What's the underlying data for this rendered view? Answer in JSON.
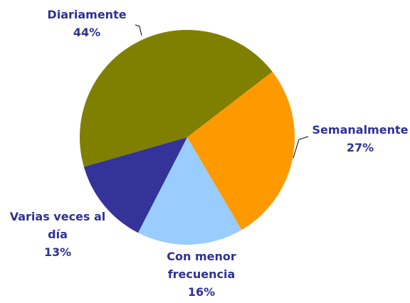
{
  "chart_data": {
    "type": "pie",
    "categories": [
      "Diariamente",
      "Semanalmente",
      "Con menor frecuencia",
      "Varias veces al día"
    ],
    "values": [
      44,
      27,
      16,
      13
    ],
    "value_labels": [
      "44%",
      "27%",
      "16%",
      "13%"
    ],
    "colors": [
      "#808000",
      "#FF9900",
      "#99CCFF",
      "#333399"
    ]
  }
}
